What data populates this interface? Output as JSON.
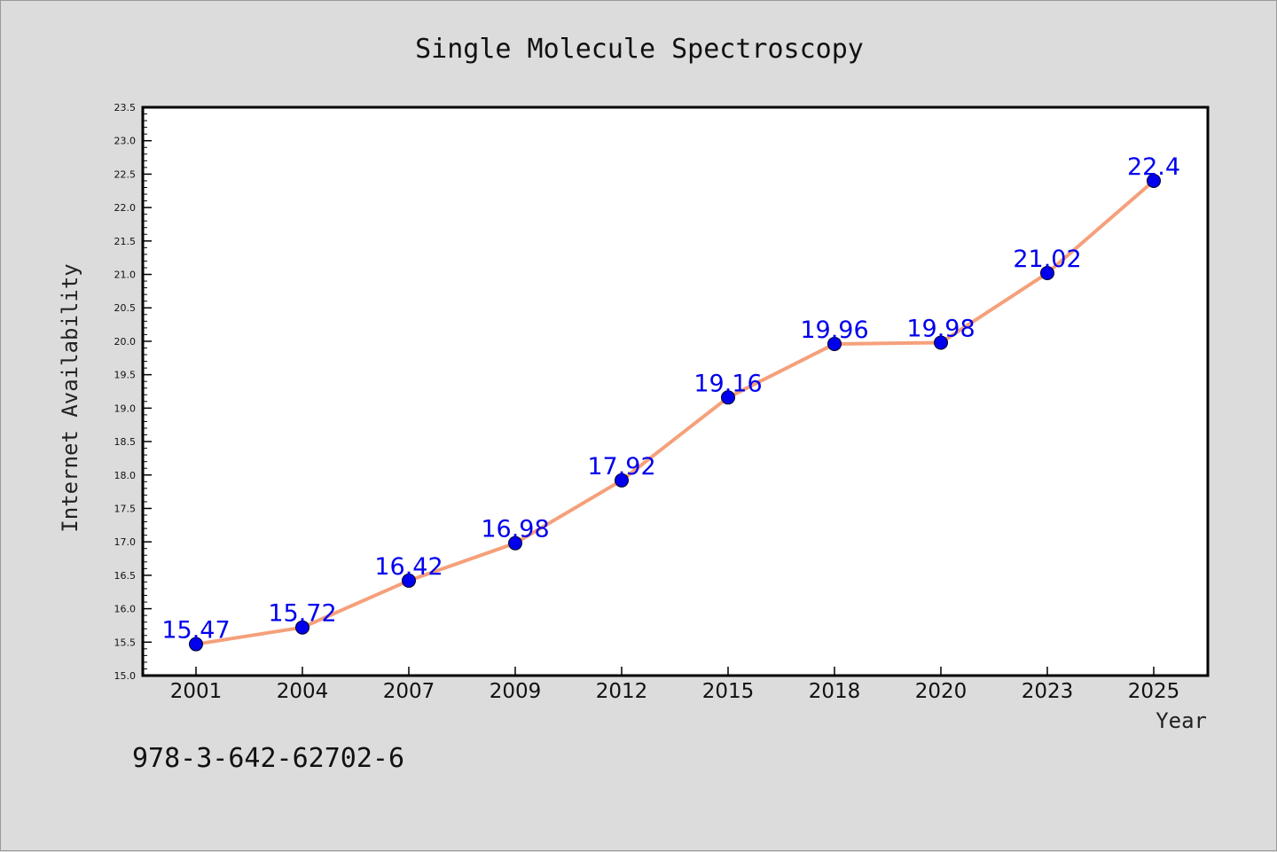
{
  "chart_data": {
    "type": "line",
    "title": "Single Molecule Spectroscopy",
    "xlabel": "Year",
    "ylabel": "Internet Availability",
    "categories": [
      "2001",
      "2004",
      "2007",
      "2009",
      "2012",
      "2015",
      "2018",
      "2020",
      "2023",
      "2025"
    ],
    "series": [
      {
        "values": [
          15.47,
          15.72,
          16.42,
          16.98,
          17.92,
          19.16,
          19.96,
          19.98,
          21.02,
          22.4
        ],
        "labels": [
          "15.47",
          "15.72",
          "16.42",
          "16.98",
          "17.92",
          "19.16",
          "19.96",
          "19.98",
          "21.02",
          "22.4"
        ],
        "line_color": "#f5a07a",
        "marker_color": "#0000ee",
        "label_color": "#0000ee"
      }
    ],
    "ylim": [
      15.0,
      23.5
    ],
    "yticks": [
      "15.0",
      "15.5",
      "16.0",
      "16.5",
      "17.0",
      "17.5",
      "18.0",
      "18.5",
      "19.0",
      "19.5",
      "20.0",
      "20.5",
      "21.0",
      "21.5",
      "22.0",
      "22.5",
      "23.0",
      "23.5"
    ],
    "grid": false,
    "legend": "none"
  },
  "annotation": "978-3-642-62702-6",
  "colors": {
    "background": "#dcdcdc",
    "plot_background": "#ffffff",
    "frame": "#000000"
  }
}
